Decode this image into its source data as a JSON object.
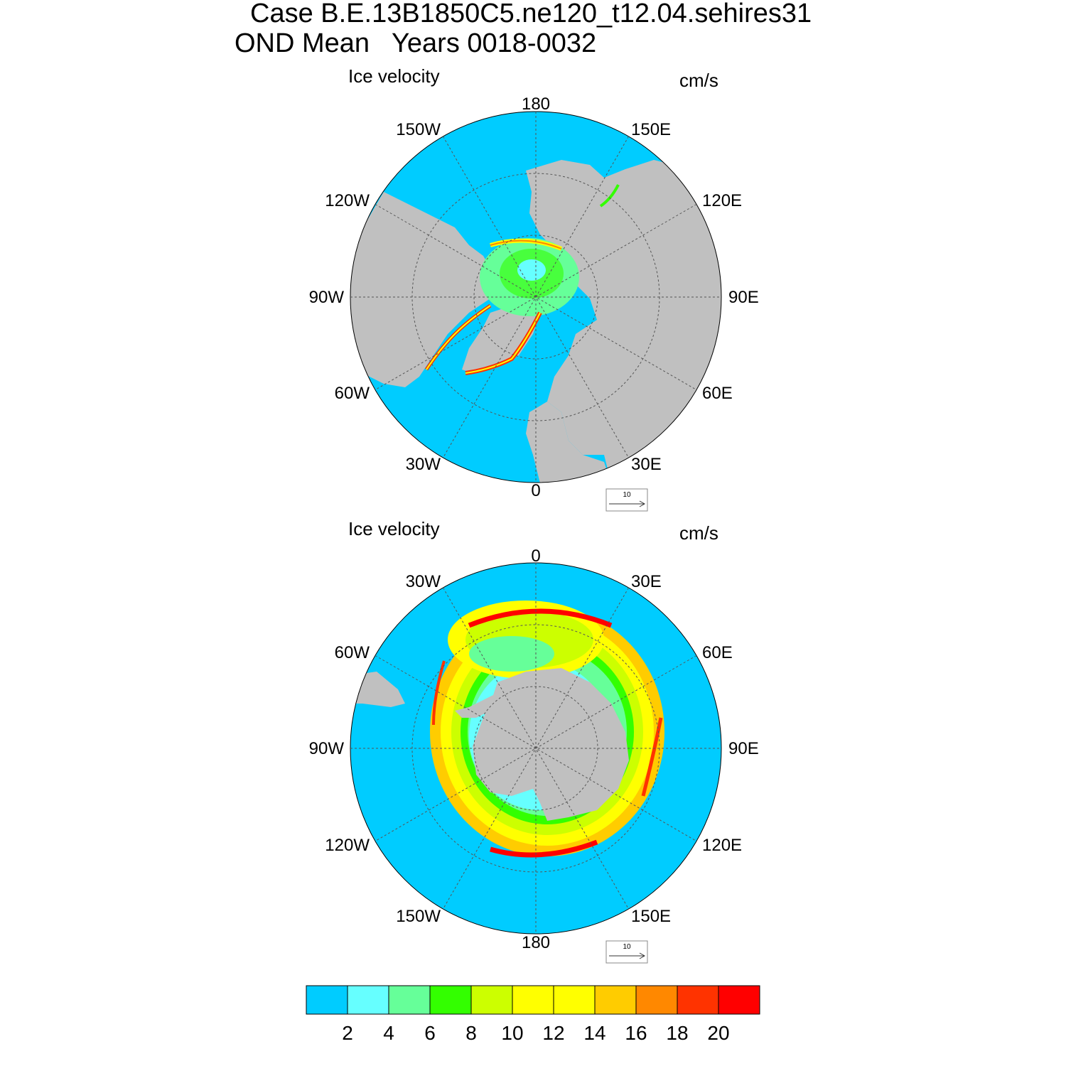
{
  "titles": {
    "line1": "Case B.E.13B1850C5.ne120_t12.04.sehires31",
    "line2": "OND Mean   Years 0018-0032"
  },
  "colors": {
    "ocean": "#00ccff",
    "land": "#c0c0c0",
    "grid": "#555555"
  },
  "panels": [
    {
      "id": "north",
      "title": "Ice velocity",
      "units": "cm/s",
      "lon_labels": [
        {
          "t": "180",
          "pos": "top"
        },
        {
          "t": "150E",
          "pos": "ur1"
        },
        {
          "t": "120E",
          "pos": "ur2"
        },
        {
          "t": "90E",
          "pos": "right"
        },
        {
          "t": "60E",
          "pos": "lr2"
        },
        {
          "t": "30E",
          "pos": "lr1"
        },
        {
          "t": "0",
          "pos": "bottom"
        },
        {
          "t": "30W",
          "pos": "ll1"
        },
        {
          "t": "60W",
          "pos": "ll2"
        },
        {
          "t": "90W",
          "pos": "left"
        },
        {
          "t": "120W",
          "pos": "ul2"
        },
        {
          "t": "150W",
          "pos": "ul1"
        }
      ],
      "ref_vector_label": "10"
    },
    {
      "id": "south",
      "title": "Ice velocity",
      "units": "cm/s",
      "lon_labels": [
        {
          "t": "0",
          "pos": "top"
        },
        {
          "t": "30E",
          "pos": "ur1"
        },
        {
          "t": "60E",
          "pos": "ur2"
        },
        {
          "t": "90E",
          "pos": "right"
        },
        {
          "t": "120E",
          "pos": "lr2"
        },
        {
          "t": "150E",
          "pos": "lr1"
        },
        {
          "t": "180",
          "pos": "bottom"
        },
        {
          "t": "150W",
          "pos": "ll1"
        },
        {
          "t": "120W",
          "pos": "ll2"
        },
        {
          "t": "90W",
          "pos": "left"
        },
        {
          "t": "60W",
          "pos": "ul2"
        },
        {
          "t": "30W",
          "pos": "ul1"
        }
      ],
      "ref_vector_label": "10"
    }
  ],
  "colorbar": {
    "colors": [
      "#00ccff",
      "#66ffff",
      "#66ff99",
      "#33ff00",
      "#ccff00",
      "#ffff00",
      "#ffff00",
      "#ffcc00",
      "#ff8800",
      "#ff3300",
      "#ff0000"
    ],
    "labels": [
      "2",
      "4",
      "6",
      "8",
      "10",
      "12",
      "14",
      "16",
      "18",
      "20"
    ]
  }
}
